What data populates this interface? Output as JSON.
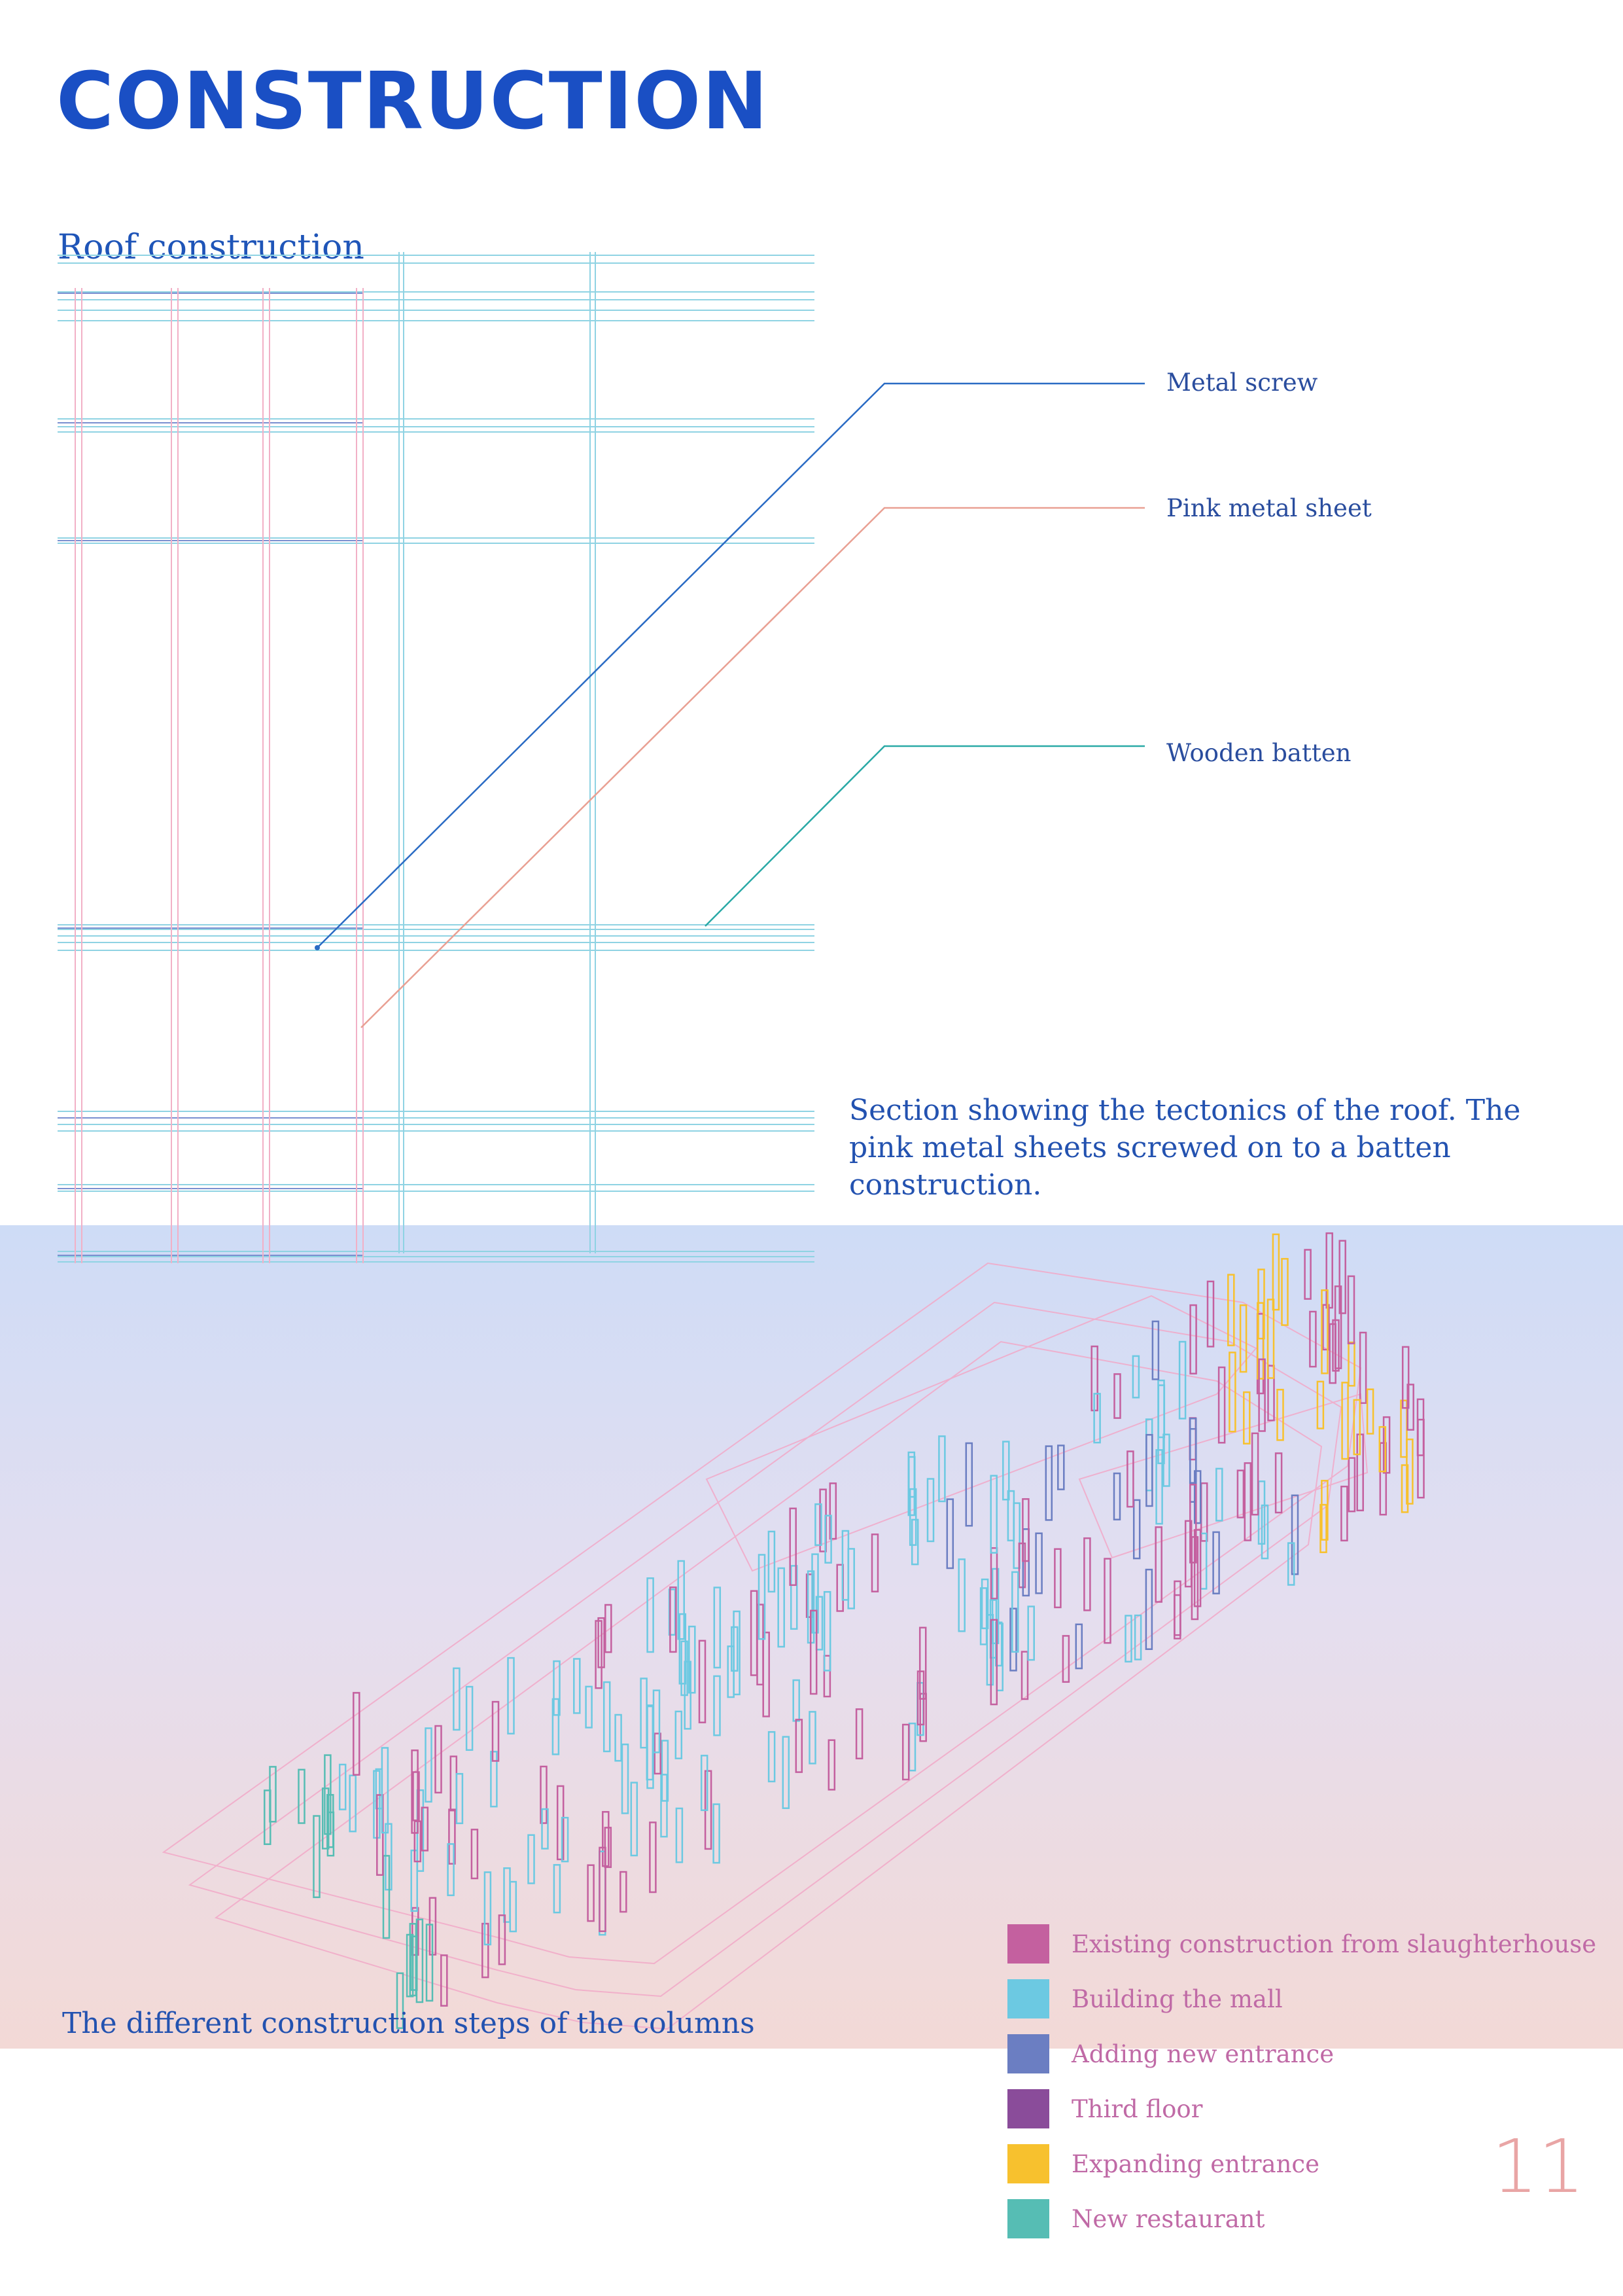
{
  "page": {
    "title": "CONSTRUCTION",
    "page_number": "11"
  },
  "roof_section": {
    "label": "Roof construction",
    "callouts": [
      {
        "text": "Metal screw",
        "color": "#2a6bc4"
      },
      {
        "text": "Pink metal sheet",
        "color": "#e9a093"
      },
      {
        "text": "Wooden batten",
        "color": "#2aa9a6"
      }
    ],
    "caption": "Section showing the tectonics of the roof. The pink metal sheets screwed on to a batten construction."
  },
  "columns_diagram": {
    "caption": "The different construction steps of the columns",
    "legend": [
      {
        "label": "Existing construction from slaughterhouse",
        "color": "#c4609f"
      },
      {
        "label": "Building the mall",
        "color": "#6cc9e2"
      },
      {
        "label": "Adding new entrance",
        "color": "#6b7ec2"
      },
      {
        "label": "Third floor",
        "color": "#8a4c9a"
      },
      {
        "label": "Expanding entrance",
        "color": "#f7c12e"
      },
      {
        "label": "New restaurant",
        "color": "#56bdb4"
      }
    ]
  }
}
